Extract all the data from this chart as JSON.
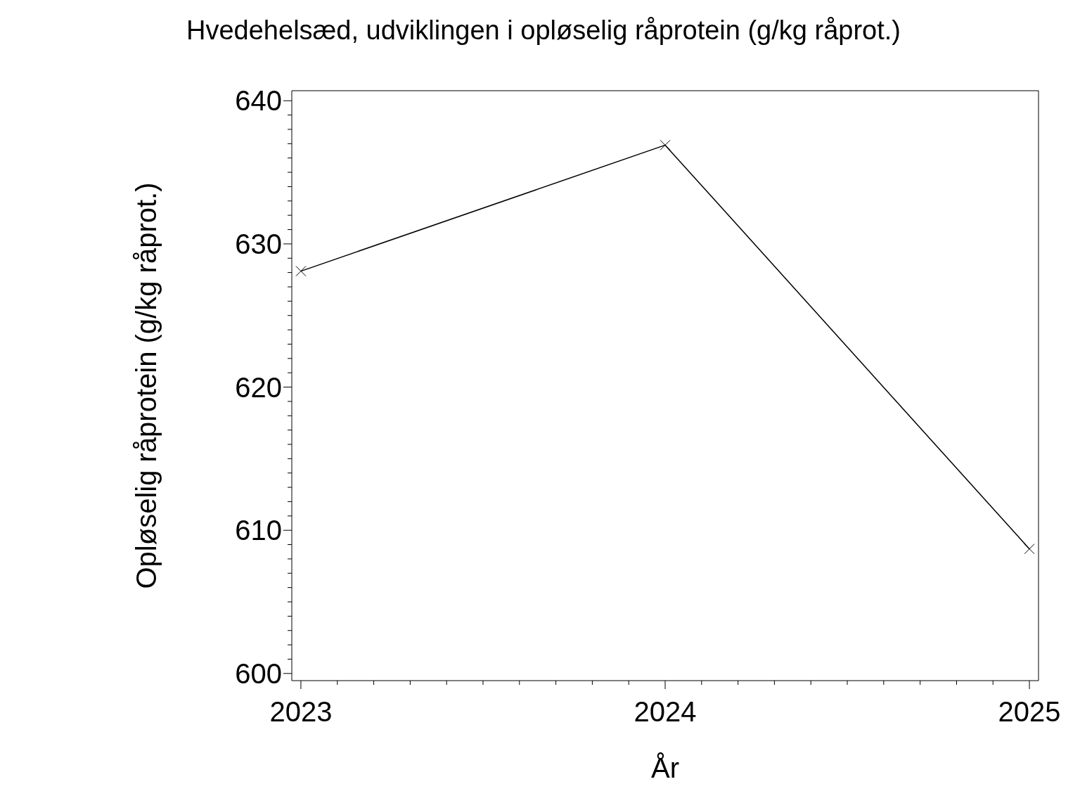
{
  "chart_data": {
    "type": "line",
    "title": "Hvedehelsæd, udviklingen i opløselig råprotein (g/kg råprot.)",
    "xlabel": "År",
    "ylabel": "Opløselig råprotein (g/kg råprot.)",
    "x": [
      2023,
      2024,
      2025
    ],
    "series": [
      {
        "color": "#000000",
        "values": [
          628.1,
          636.9,
          608.7
        ]
      }
    ],
    "xlim": [
      2022.975,
      2025.025
    ],
    "ylim": [
      599.5,
      640.7
    ],
    "xticks": [
      2023,
      {
        "value": 2023.1,
        "label": null
      },
      {
        "value": 2023.2,
        "label": null
      },
      {
        "value": 2023.3,
        "label": null
      },
      {
        "value": 2023.4,
        "label": null
      },
      {
        "value": 2023.5,
        "label": null
      },
      {
        "value": 2023.6,
        "label": null
      },
      {
        "value": 2023.7,
        "label": null
      },
      {
        "value": 2023.8,
        "label": null
      },
      {
        "value": 2023.9,
        "label": null
      },
      2024,
      {
        "value": 2024.1,
        "label": null
      },
      {
        "value": 2024.2,
        "label": null
      },
      {
        "value": 2024.3,
        "label": null
      },
      {
        "value": 2024.4,
        "label": null
      },
      {
        "value": 2024.5,
        "label": null
      },
      {
        "value": 2024.6,
        "label": null
      },
      {
        "value": 2024.7,
        "label": null
      },
      {
        "value": 2024.8,
        "label": null
      },
      {
        "value": 2024.9,
        "label": null
      },
      2025
    ],
    "yticks": [
      600,
      {
        "value": 601,
        "label": null
      },
      {
        "value": 602,
        "label": null
      },
      {
        "value": 603,
        "label": null
      },
      {
        "value": 604,
        "label": null
      },
      {
        "value": 605,
        "label": null
      },
      {
        "value": 606,
        "label": null
      },
      {
        "value": 607,
        "label": null
      },
      {
        "value": 608,
        "label": null
      },
      {
        "value": 609,
        "label": null
      },
      610,
      {
        "value": 611,
        "label": null
      },
      {
        "value": 612,
        "label": null
      },
      {
        "value": 613,
        "label": null
      },
      {
        "value": 614,
        "label": null
      },
      {
        "value": 615,
        "label": null
      },
      {
        "value": 616,
        "label": null
      },
      {
        "value": 617,
        "label": null
      },
      {
        "value": 618,
        "label": null
      },
      {
        "value": 619,
        "label": null
      },
      620,
      {
        "value": 621,
        "label": null
      },
      {
        "value": 622,
        "label": null
      },
      {
        "value": 623,
        "label": null
      },
      {
        "value": 624,
        "label": null
      },
      {
        "value": 625,
        "label": null
      },
      {
        "value": 626,
        "label": null
      },
      {
        "value": 627,
        "label": null
      },
      {
        "value": 628,
        "label": null
      },
      {
        "value": 629,
        "label": null
      },
      630,
      {
        "value": 631,
        "label": null
      },
      {
        "value": 632,
        "label": null
      },
      {
        "value": 633,
        "label": null
      },
      {
        "value": 634,
        "label": null
      },
      {
        "value": 635,
        "label": null
      },
      {
        "value": 636,
        "label": null
      },
      {
        "value": 637,
        "label": null
      },
      {
        "value": 638,
        "label": null
      },
      {
        "value": 639,
        "label": null
      },
      640
    ],
    "marker": "cross",
    "line_style": "solid",
    "grid": false,
    "legend": false
  }
}
